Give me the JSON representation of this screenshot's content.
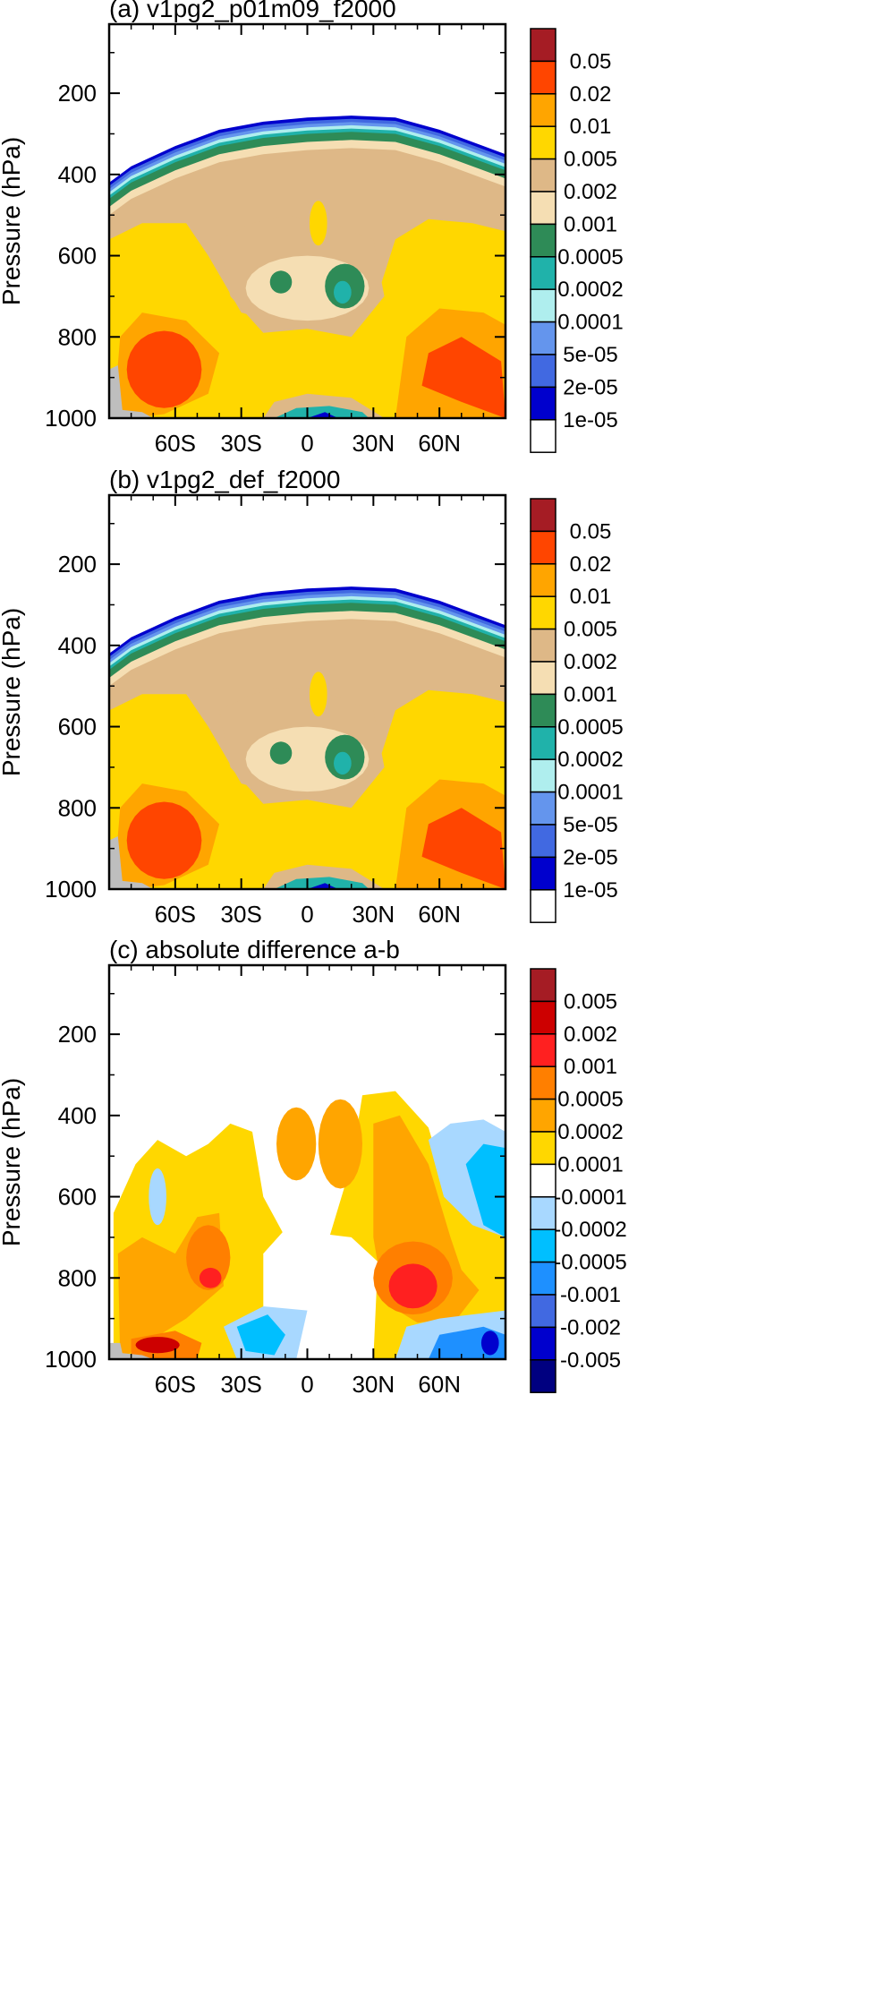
{
  "chart_data": [
    {
      "type": "contour",
      "title": "(a) v1pg2_p01m09_f2000",
      "ylabel": "Pressure (hPa)",
      "xlabel": "",
      "x_ticks": [
        "60S",
        "30S",
        "0",
        "30N",
        "60N"
      ],
      "x_tick_values": [
        -60,
        -30,
        0,
        30,
        60
      ],
      "xlim": [
        -90,
        90
      ],
      "y_ticks": [
        "200",
        "400",
        "600",
        "800",
        "1000"
      ],
      "y_tick_values": [
        200,
        400,
        600,
        800,
        1000
      ],
      "ylim": [
        1000,
        30
      ],
      "colorbar": {
        "levels": [
          "0.05",
          "0.02",
          "0.01",
          "0.005",
          "0.002",
          "0.001",
          "0.0005",
          "0.0002",
          "0.0001",
          "5e-05",
          "2e-05",
          "1e-05"
        ],
        "colors": [
          "#a51c24",
          "#ff4500",
          "#ffa500",
          "#ffd700",
          "#deb887",
          "#f5deb3",
          "#2e8b57",
          "#20b2aa",
          "#afeeee",
          "#6495ed",
          "#4169e1",
          "#0000cd",
          "#ffffff"
        ]
      }
    },
    {
      "type": "contour",
      "title": "(b) v1pg2_def_f2000",
      "ylabel": "Pressure (hPa)",
      "xlabel": "",
      "x_ticks": [
        "60S",
        "30S",
        "0",
        "30N",
        "60N"
      ],
      "x_tick_values": [
        -60,
        -30,
        0,
        30,
        60
      ],
      "xlim": [
        -90,
        90
      ],
      "y_ticks": [
        "200",
        "400",
        "600",
        "800",
        "1000"
      ],
      "y_tick_values": [
        200,
        400,
        600,
        800,
        1000
      ],
      "ylim": [
        1000,
        30
      ],
      "colorbar": {
        "levels": [
          "0.05",
          "0.02",
          "0.01",
          "0.005",
          "0.002",
          "0.001",
          "0.0005",
          "0.0002",
          "0.0001",
          "5e-05",
          "2e-05",
          "1e-05"
        ],
        "colors": [
          "#a51c24",
          "#ff4500",
          "#ffa500",
          "#ffd700",
          "#deb887",
          "#f5deb3",
          "#2e8b57",
          "#20b2aa",
          "#afeeee",
          "#6495ed",
          "#4169e1",
          "#0000cd",
          "#ffffff"
        ]
      }
    },
    {
      "type": "contour",
      "title": "(c) absolute difference a-b",
      "ylabel": "Pressure (hPa)",
      "xlabel": "",
      "x_ticks": [
        "60S",
        "30S",
        "0",
        "30N",
        "60N"
      ],
      "x_tick_values": [
        -60,
        -30,
        0,
        30,
        60
      ],
      "xlim": [
        -90,
        90
      ],
      "y_ticks": [
        "200",
        "400",
        "600",
        "800",
        "1000"
      ],
      "y_tick_values": [
        200,
        400,
        600,
        800,
        1000
      ],
      "ylim": [
        1000,
        30
      ],
      "colorbar": {
        "levels": [
          "0.005",
          "0.002",
          "0.001",
          "0.0005",
          "0.0002",
          "0.0001",
          "-0.0001",
          "-0.0002",
          "-0.0005",
          "-0.001",
          "-0.002",
          "-0.005"
        ],
        "colors": [
          "#a51c24",
          "#cd0000",
          "#ff2020",
          "#ff7f00",
          "#ffa500",
          "#ffd700",
          "#ffffff",
          "#a8d8ff",
          "#00bfff",
          "#1e90ff",
          "#4169e1",
          "#0000cd",
          "#000080"
        ]
      }
    }
  ]
}
